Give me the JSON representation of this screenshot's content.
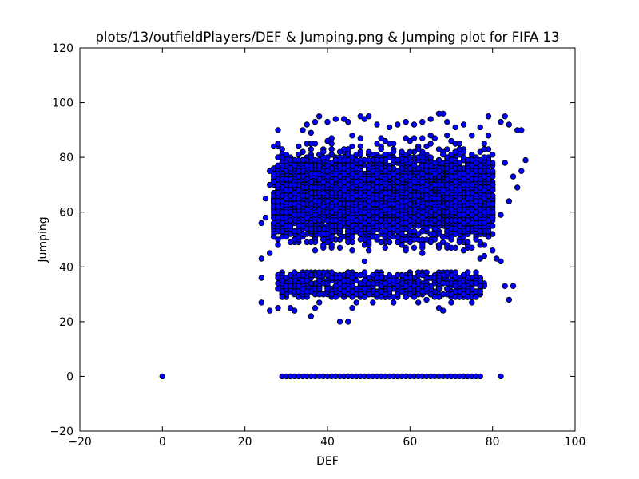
{
  "chart_data": {
    "type": "scatter",
    "title": "plots/13/outfieldPlayers/DEF & Jumping.png & Jumping plot for FIFA 13",
    "xlabel": "DEF",
    "ylabel": "Jumping",
    "xlim": [
      -20,
      100
    ],
    "ylim": [
      -20,
      120
    ],
    "x_ticks": [
      "−20",
      "0",
      "20",
      "40",
      "60",
      "80",
      "100"
    ],
    "y_ticks": [
      "−20",
      "0",
      "20",
      "40",
      "60",
      "80",
      "100",
      "120"
    ],
    "x_tick_values": [
      -20,
      0,
      20,
      40,
      60,
      80,
      100
    ],
    "y_tick_values": [
      -20,
      0,
      20,
      40,
      60,
      80,
      100,
      120
    ],
    "grid": false,
    "marker_color": "#0000ff",
    "marker_edge_color": "#000000",
    "series": [
      {
        "values_description": "player DEF vs Jumping",
        "points": [
          [
            0,
            0
          ],
          [
            29,
            0
          ],
          [
            30,
            0
          ],
          [
            31,
            0
          ],
          [
            32,
            0
          ],
          [
            33,
            0
          ],
          [
            34,
            0
          ],
          [
            35,
            0
          ],
          [
            36,
            0
          ],
          [
            37,
            0
          ],
          [
            38,
            0
          ],
          [
            39,
            0
          ],
          [
            40,
            0
          ],
          [
            41,
            0
          ],
          [
            42,
            0
          ],
          [
            43,
            0
          ],
          [
            44,
            0
          ],
          [
            45,
            0
          ],
          [
            46,
            0
          ],
          [
            47,
            0
          ],
          [
            48,
            0
          ],
          [
            49,
            0
          ],
          [
            50,
            0
          ],
          [
            51,
            0
          ],
          [
            52,
            0
          ],
          [
            53,
            0
          ],
          [
            54,
            0
          ],
          [
            55,
            0
          ],
          [
            56,
            0
          ],
          [
            57,
            0
          ],
          [
            58,
            0
          ],
          [
            59,
            0
          ],
          [
            60,
            0
          ],
          [
            61,
            0
          ],
          [
            62,
            0
          ],
          [
            63,
            0
          ],
          [
            64,
            0
          ],
          [
            65,
            0
          ],
          [
            66,
            0
          ],
          [
            67,
            0
          ],
          [
            68,
            0
          ],
          [
            69,
            0
          ],
          [
            70,
            0
          ],
          [
            71,
            0
          ],
          [
            72,
            0
          ],
          [
            73,
            0
          ],
          [
            74,
            0
          ],
          [
            75,
            0
          ],
          [
            76,
            0
          ],
          [
            77,
            0
          ],
          [
            82,
            0
          ],
          [
            24,
            27
          ],
          [
            24,
            36
          ],
          [
            24,
            43
          ],
          [
            24,
            56
          ],
          [
            25,
            58
          ],
          [
            25,
            65
          ],
          [
            26,
            24
          ],
          [
            26,
            45
          ],
          [
            26,
            70
          ],
          [
            26,
            75
          ],
          [
            27,
            84
          ],
          [
            27,
            74
          ],
          [
            28,
            90
          ],
          [
            28,
            25
          ],
          [
            29,
            35
          ],
          [
            29,
            53
          ],
          [
            29,
            80
          ],
          [
            30,
            81
          ],
          [
            30,
            36
          ],
          [
            31,
            33
          ],
          [
            31,
            25
          ],
          [
            32,
            24
          ],
          [
            33,
            29
          ],
          [
            33,
            84
          ],
          [
            34,
            90
          ],
          [
            34,
            32
          ],
          [
            35,
            92
          ],
          [
            35,
            31
          ],
          [
            36,
            22
          ],
          [
            36,
            89
          ],
          [
            37,
            25
          ],
          [
            37,
            93
          ],
          [
            38,
            95
          ],
          [
            38,
            27
          ],
          [
            39,
            30
          ],
          [
            40,
            93
          ],
          [
            42,
            94
          ],
          [
            43,
            20
          ],
          [
            44,
            94
          ],
          [
            44,
            33
          ],
          [
            45,
            20
          ],
          [
            45,
            93
          ],
          [
            46,
            25
          ],
          [
            47,
            27
          ],
          [
            48,
            95
          ],
          [
            48,
            30
          ],
          [
            49,
            94
          ],
          [
            50,
            95
          ],
          [
            50,
            30
          ],
          [
            51,
            27
          ],
          [
            52,
            92
          ],
          [
            53,
            31
          ],
          [
            55,
            91
          ],
          [
            56,
            27
          ],
          [
            57,
            92
          ],
          [
            58,
            31
          ],
          [
            59,
            93
          ],
          [
            60,
            30
          ],
          [
            61,
            92
          ],
          [
            62,
            27
          ],
          [
            63,
            93
          ],
          [
            64,
            28
          ],
          [
            65,
            94
          ],
          [
            66,
            29
          ],
          [
            67,
            96
          ],
          [
            67,
            25
          ],
          [
            68,
            96
          ],
          [
            68,
            24
          ],
          [
            69,
            93
          ],
          [
            70,
            27
          ],
          [
            71,
            91
          ],
          [
            72,
            29
          ],
          [
            73,
            92
          ],
          [
            74,
            31
          ],
          [
            75,
            27
          ],
          [
            76,
            34
          ],
          [
            77,
            91
          ],
          [
            78,
            44
          ],
          [
            79,
            95
          ],
          [
            79,
            53
          ],
          [
            80,
            46
          ],
          [
            80,
            58
          ],
          [
            81,
            43
          ],
          [
            82,
            42
          ],
          [
            82,
            93
          ],
          [
            82,
            59
          ],
          [
            83,
            95
          ],
          [
            83,
            78
          ],
          [
            83,
            33
          ],
          [
            84,
            28
          ],
          [
            84,
            64
          ],
          [
            84,
            92
          ],
          [
            85,
            33
          ],
          [
            85,
            73
          ],
          [
            86,
            69
          ],
          [
            86,
            90
          ],
          [
            87,
            90
          ],
          [
            87,
            75
          ],
          [
            88,
            79
          ]
        ]
      }
    ]
  }
}
